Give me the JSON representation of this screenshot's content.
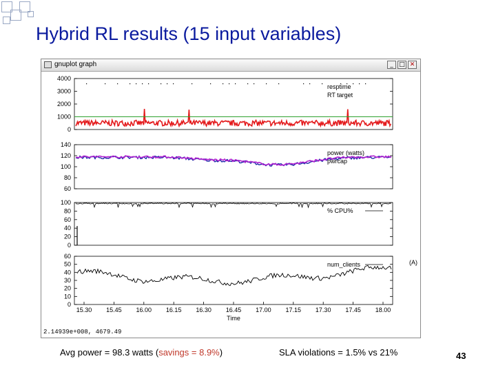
{
  "slide": {
    "title": "Hybrid RL results (15 input variables)",
    "page_number": "43",
    "footer_left_prefix": "Avg power = 98.3 watts (",
    "footer_left_savings": "savings = 8.9%",
    "footer_left_suffix": ")",
    "footer_right": "SLA violations = 1.5% vs 21%"
  },
  "window": {
    "title": "gnuplot graph",
    "buttons": {
      "minimize": "_",
      "maximize": "□",
      "close": "✕"
    },
    "status_text": "2.14939e+008, 4679.49",
    "corner_label": "(A)"
  },
  "colors": {
    "title": "#0a1a9e",
    "resptime": "#e41a1c",
    "rt_target": "#2ca02c",
    "power": "#b020d0",
    "powcap": "#1f2aa8",
    "savings": "#c0392b"
  },
  "chart_data": [
    {
      "type": "line",
      "y_ticks": [
        "4000",
        "3000",
        "2000",
        "1000",
        "0"
      ],
      "series": [
        {
          "name": "resptime"
        },
        {
          "name": "RT target",
          "values": [
            1000
          ]
        }
      ]
    },
    {
      "type": "line",
      "y_ticks": [
        "140",
        "120",
        "100",
        "80",
        "60"
      ],
      "series": [
        {
          "name": "power (watts)"
        },
        {
          "name": "pwrcap"
        }
      ]
    },
    {
      "type": "line",
      "y_ticks": [
        "100",
        "80",
        "60",
        "40",
        "20",
        "0"
      ],
      "series": [
        {
          "name": "% CPU%"
        }
      ]
    },
    {
      "type": "line",
      "y_ticks": [
        "60",
        "50",
        "40",
        "30",
        "20",
        "10",
        "0"
      ],
      "series": [
        {
          "name": "num_clients"
        }
      ],
      "x_ticks": [
        "15.30",
        "15.45",
        "16.00",
        "16.15",
        "16.30",
        "16.45",
        "17.00",
        "17.15",
        "17.30",
        "17.45",
        "18.00"
      ],
      "xlabel": "Time"
    }
  ]
}
